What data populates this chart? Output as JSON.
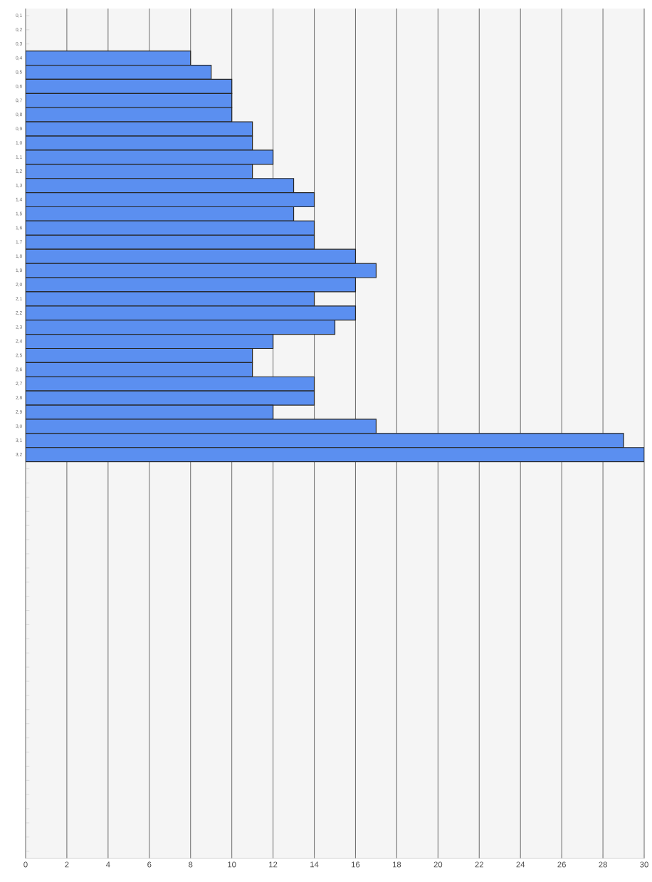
{
  "chart_data": {
    "type": "bar",
    "orientation": "horizontal",
    "color": "#5b8ff0",
    "categories": [
      "0,1",
      "0,2",
      "0,3",
      "0,4",
      "0,5",
      "0,6",
      "0,7",
      "0,8",
      "0,9",
      "1,0",
      "1,1",
      "1,2",
      "1,3",
      "1,4",
      "1,5",
      "1,6",
      "1,7",
      "1,8",
      "1,9",
      "2,0",
      "2,1",
      "2,2",
      "2,3",
      "2,4",
      "2,5",
      "2,6",
      "2,7",
      "2,8",
      "2,9",
      "3,0",
      "3,1",
      "3,2",
      null,
      null,
      null,
      null,
      null,
      null,
      null,
      null,
      null,
      null,
      null,
      null,
      null,
      null,
      null,
      null,
      null,
      null,
      null,
      null,
      null,
      null,
      null,
      null,
      null,
      null,
      null,
      null
    ],
    "values": [
      null,
      null,
      null,
      8,
      9,
      10,
      10,
      10,
      11,
      11,
      12,
      11,
      13,
      14,
      13,
      14,
      14,
      16,
      17,
      16,
      14,
      16,
      15,
      12,
      11,
      11,
      14,
      14,
      12,
      17,
      29,
      30,
      null,
      null,
      null,
      null,
      null,
      null,
      null,
      null,
      null,
      null,
      null,
      null,
      null,
      null,
      null,
      null,
      null,
      null,
      null,
      null,
      null,
      null,
      null,
      null,
      null,
      null,
      null,
      null
    ],
    "xlim": [
      0,
      30
    ],
    "xticks": [
      0,
      2,
      4,
      6,
      8,
      10,
      12,
      14,
      16,
      18,
      20,
      22,
      24,
      26,
      28,
      30
    ],
    "grid": "x"
  }
}
